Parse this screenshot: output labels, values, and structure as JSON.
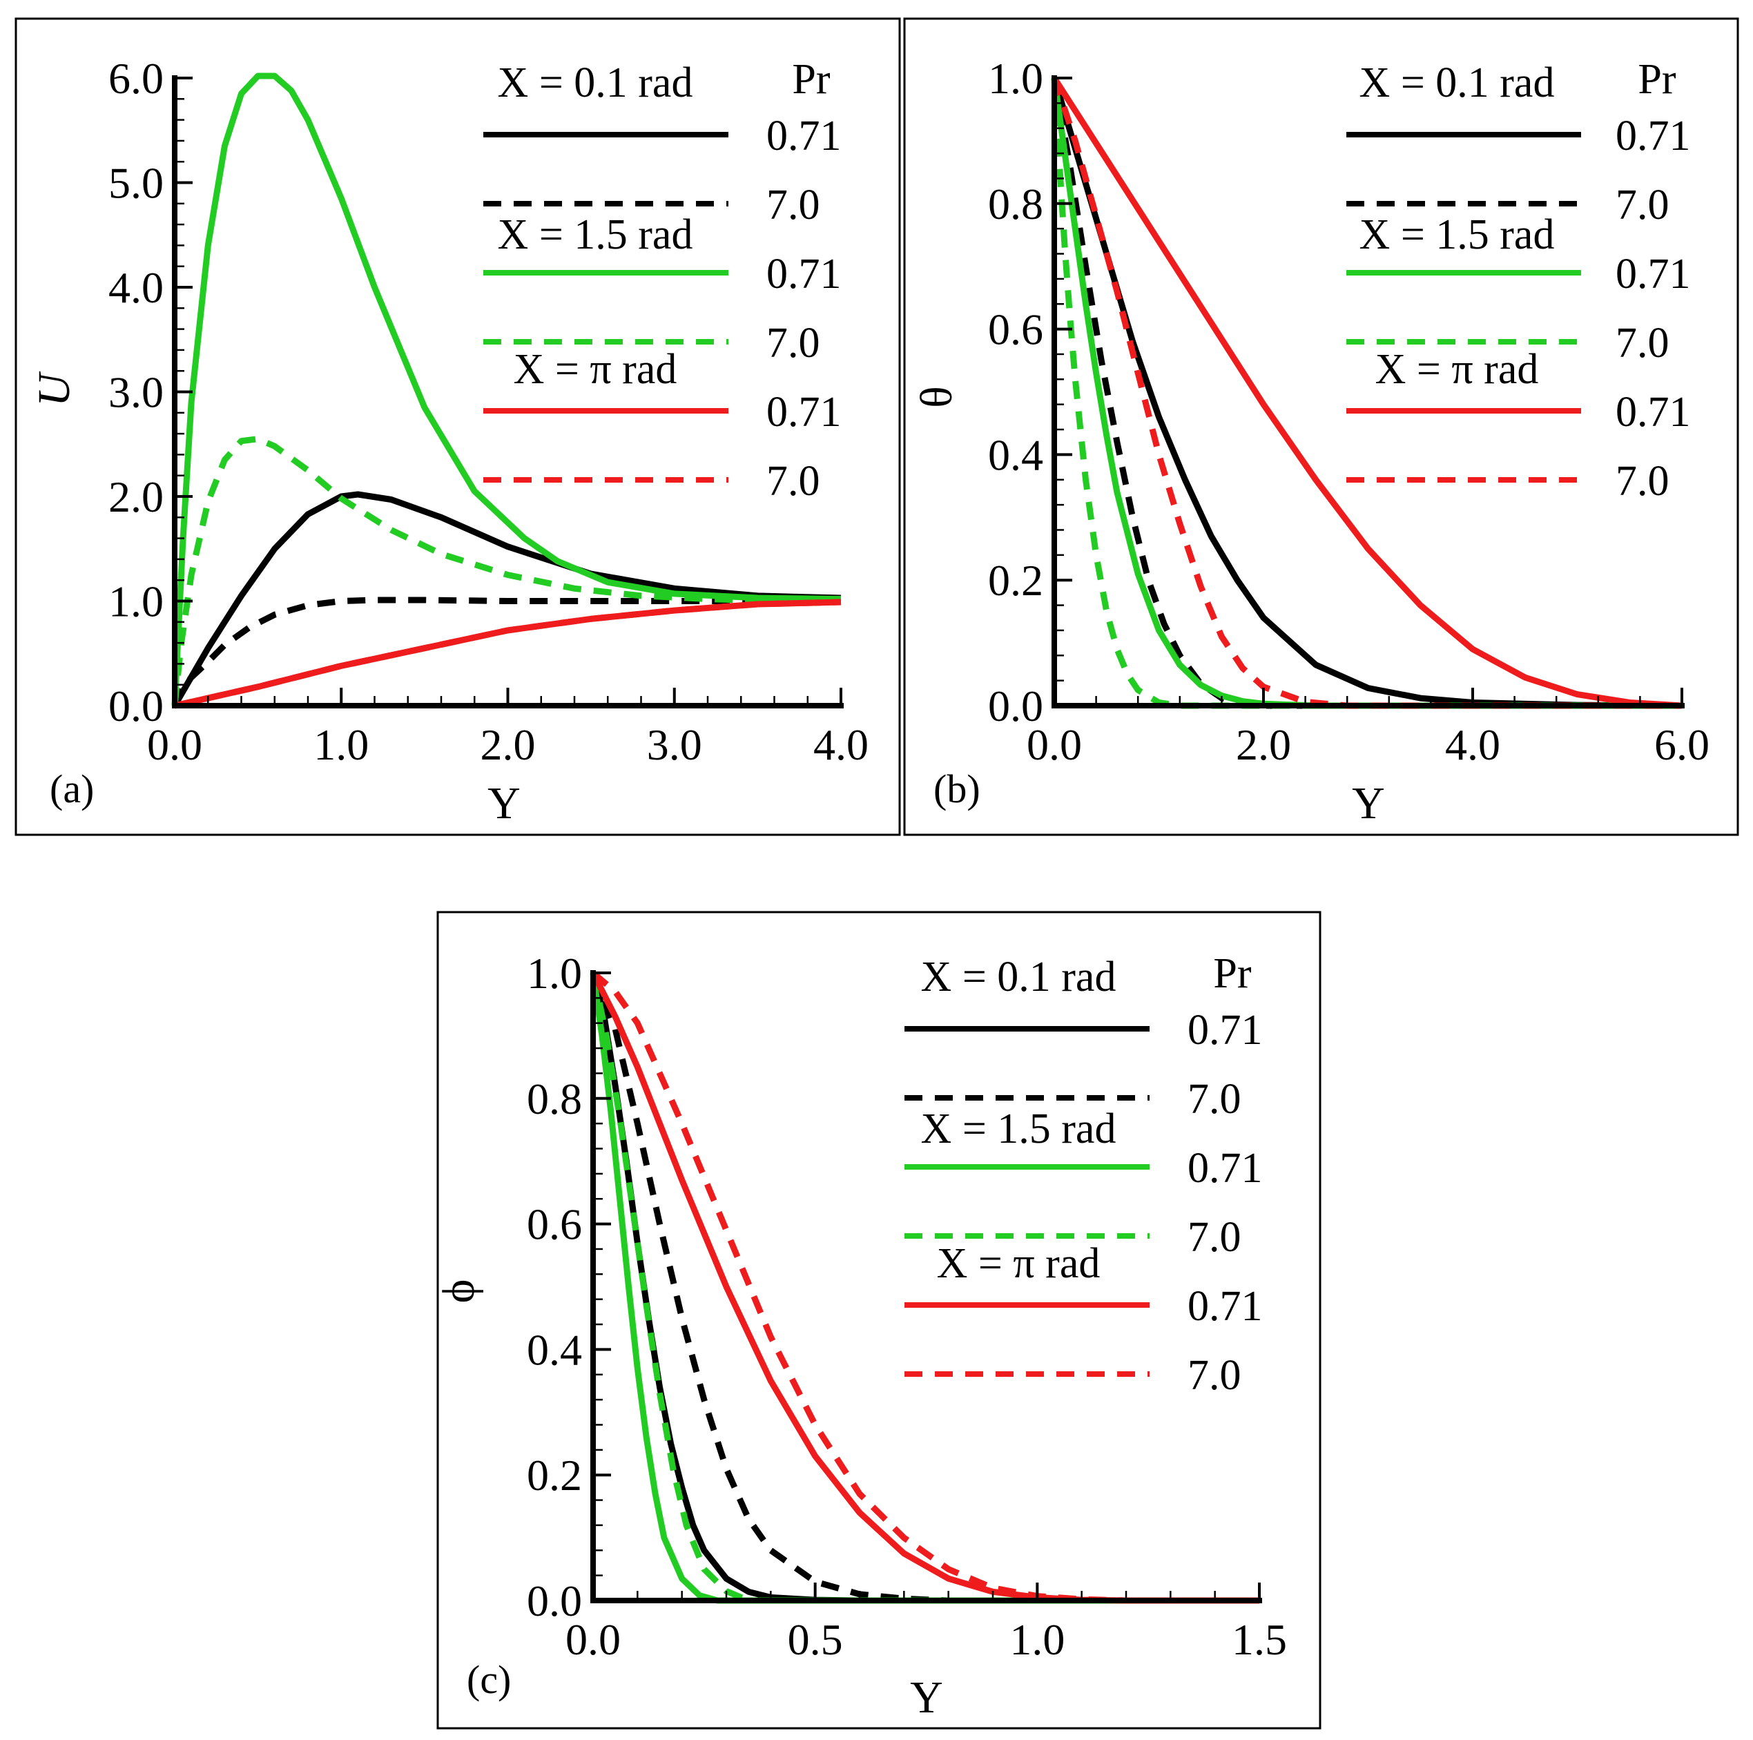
{
  "colors": {
    "black": "#000000",
    "green": "#22cc22",
    "red": "#ee1c1c"
  },
  "chart_data": [
    {
      "panel": "(a)",
      "type": "line",
      "xlabel": "Y",
      "ylabel": "U",
      "xlim": [
        0,
        4
      ],
      "ylim": [
        0,
        6
      ],
      "xticks": [
        "0.0",
        "1.0",
        "2.0",
        "3.0",
        "4.0"
      ],
      "yticks": [
        "0.0",
        "1.0",
        "2.0",
        "3.0",
        "4.0",
        "5.0",
        "6.0"
      ],
      "legend_header": "Pr",
      "legend_groups": [
        "X = 0.1 rad",
        "X = 1.5 rad",
        "X = π rad"
      ],
      "series": [
        {
          "name": "0.71",
          "group": "X = 0.1 rad",
          "color": "#000000",
          "dash": false,
          "x": [
            0,
            0.2,
            0.4,
            0.6,
            0.8,
            1.0,
            1.1,
            1.3,
            1.6,
            2.0,
            2.5,
            3.0,
            3.5,
            4.0
          ],
          "y": [
            0,
            0.55,
            1.05,
            1.5,
            1.83,
            2.0,
            2.02,
            1.97,
            1.8,
            1.52,
            1.26,
            1.12,
            1.05,
            1.03
          ]
        },
        {
          "name": "7.0",
          "group": "X = 0.1 rad",
          "color": "#000000",
          "dash": true,
          "x": [
            0,
            0.05,
            0.1,
            0.2,
            0.3,
            0.45,
            0.6,
            0.8,
            1.0,
            1.2,
            1.5,
            2.0,
            2.5,
            3.0,
            3.5,
            4.0
          ],
          "y": [
            0,
            0.18,
            0.27,
            0.42,
            0.58,
            0.75,
            0.87,
            0.96,
            1.0,
            1.01,
            1.01,
            1.0,
            1.0,
            1.0,
            1.0,
            1.0
          ]
        },
        {
          "name": "0.71",
          "group": "X = 1.5 rad",
          "color": "#22cc22",
          "dash": false,
          "x": [
            0,
            0.05,
            0.1,
            0.2,
            0.3,
            0.4,
            0.5,
            0.6,
            0.7,
            0.8,
            1.0,
            1.2,
            1.5,
            1.8,
            2.1,
            2.3,
            2.6,
            3.0,
            3.5,
            4.0
          ],
          "y": [
            0,
            1.6,
            2.9,
            4.4,
            5.35,
            5.85,
            6.02,
            6.02,
            5.88,
            5.6,
            4.85,
            4.0,
            2.85,
            2.05,
            1.6,
            1.38,
            1.18,
            1.07,
            1.03,
            1.02
          ]
        },
        {
          "name": "7.0",
          "group": "X = 1.5 rad",
          "color": "#22cc22",
          "dash": true,
          "x": [
            0,
            0.04,
            0.1,
            0.2,
            0.3,
            0.4,
            0.5,
            0.6,
            0.8,
            1.0,
            1.3,
            1.6,
            2.0,
            2.4,
            2.8,
            3.2,
            3.6,
            4.0
          ],
          "y": [
            0,
            0.6,
            1.25,
            1.95,
            2.35,
            2.53,
            2.55,
            2.48,
            2.25,
            1.98,
            1.68,
            1.45,
            1.25,
            1.12,
            1.05,
            1.02,
            1.0,
            1.0
          ]
        },
        {
          "name": "0.71",
          "group": "X = π rad",
          "color": "#ee1c1c",
          "dash": false,
          "x": [
            0,
            0.5,
            1.0,
            1.5,
            2.0,
            2.5,
            3.0,
            3.5,
            4.0
          ],
          "y": [
            0,
            0.18,
            0.38,
            0.55,
            0.72,
            0.83,
            0.91,
            0.97,
            0.99
          ]
        },
        {
          "name": "7.0",
          "group": "X = π rad",
          "color": "#ee1c1c",
          "dash": true,
          "x": [
            0,
            0.5,
            1.0,
            1.5,
            2.0,
            2.5,
            3.0,
            3.5,
            4.0
          ],
          "y": [
            0,
            0.18,
            0.38,
            0.55,
            0.72,
            0.83,
            0.91,
            0.97,
            0.99
          ]
        }
      ]
    },
    {
      "panel": "(b)",
      "type": "line",
      "xlabel": "Y",
      "ylabel": "θ",
      "xlim": [
        0,
        6
      ],
      "ylim": [
        0,
        1
      ],
      "xticks": [
        "0.0",
        "2.0",
        "4.0",
        "6.0"
      ],
      "yticks": [
        "0.0",
        "0.2",
        "0.4",
        "0.6",
        "0.8",
        "1.0"
      ],
      "legend_header": "Pr",
      "legend_groups": [
        "X = 0.1 rad",
        "X = 1.5 rad",
        "X = π rad"
      ],
      "series": [
        {
          "name": "0.71",
          "group": "X = 0.1 rad",
          "color": "#000000",
          "dash": false,
          "x": [
            0,
            0.25,
            0.5,
            0.75,
            1.0,
            1.25,
            1.5,
            1.75,
            2.0,
            2.5,
            3.0,
            3.5,
            4.0,
            5.0,
            6.0
          ],
          "y": [
            1.0,
            0.86,
            0.72,
            0.58,
            0.46,
            0.36,
            0.27,
            0.2,
            0.14,
            0.065,
            0.028,
            0.012,
            0.005,
            0.001,
            0.0
          ]
        },
        {
          "name": "7.0",
          "group": "X = 0.1 rad",
          "color": "#000000",
          "dash": true,
          "x": [
            0,
            0.15,
            0.3,
            0.45,
            0.6,
            0.75,
            0.9,
            1.05,
            1.2,
            1.4,
            1.6,
            1.8,
            2.0,
            3.0,
            6.0
          ],
          "y": [
            1.0,
            0.86,
            0.7,
            0.55,
            0.42,
            0.3,
            0.2,
            0.13,
            0.08,
            0.035,
            0.012,
            0.003,
            0.0,
            0.0,
            0.0
          ]
        },
        {
          "name": "0.71",
          "group": "X = 1.5 rad",
          "color": "#22cc22",
          "dash": false,
          "x": [
            0,
            0.1,
            0.2,
            0.3,
            0.4,
            0.5,
            0.6,
            0.8,
            1.0,
            1.2,
            1.4,
            1.6,
            1.8,
            2.0,
            2.5,
            3.0,
            6.0
          ],
          "y": [
            1.0,
            0.88,
            0.76,
            0.64,
            0.53,
            0.43,
            0.34,
            0.21,
            0.12,
            0.065,
            0.033,
            0.016,
            0.007,
            0.003,
            0.0,
            0.0,
            0.0
          ]
        },
        {
          "name": "7.0",
          "group": "X = 1.5 rad",
          "color": "#22cc22",
          "dash": true,
          "x": [
            0,
            0.05,
            0.1,
            0.15,
            0.2,
            0.3,
            0.4,
            0.5,
            0.6,
            0.7,
            0.8,
            1.0,
            1.2,
            1.5,
            6.0
          ],
          "y": [
            1.0,
            0.86,
            0.73,
            0.62,
            0.52,
            0.36,
            0.24,
            0.15,
            0.09,
            0.05,
            0.025,
            0.005,
            0.0,
            0.0,
            0.0
          ]
        },
        {
          "name": "0.71",
          "group": "X = π rad",
          "color": "#ee1c1c",
          "dash": false,
          "x": [
            0,
            0.5,
            1.0,
            1.5,
            2.0,
            2.5,
            3.0,
            3.5,
            4.0,
            4.5,
            5.0,
            5.5,
            6.0
          ],
          "y": [
            1.0,
            0.87,
            0.74,
            0.61,
            0.48,
            0.36,
            0.25,
            0.16,
            0.09,
            0.045,
            0.018,
            0.005,
            0.0
          ]
        },
        {
          "name": "7.0",
          "group": "X = π rad",
          "color": "#ee1c1c",
          "dash": true,
          "x": [
            0,
            0.2,
            0.4,
            0.6,
            0.8,
            1.0,
            1.2,
            1.4,
            1.6,
            1.8,
            2.0,
            2.4,
            2.8,
            3.2,
            6.0
          ],
          "y": [
            1.0,
            0.9,
            0.78,
            0.66,
            0.53,
            0.4,
            0.29,
            0.19,
            0.11,
            0.06,
            0.03,
            0.006,
            0.0,
            0.0,
            0.0
          ]
        }
      ]
    },
    {
      "panel": "(c)",
      "type": "line",
      "xlabel": "Y",
      "ylabel": "ϕ",
      "xlim": [
        0,
        1.5
      ],
      "ylim": [
        0,
        1
      ],
      "xticks": [
        "0.0",
        "0.5",
        "1.0",
        "1.5"
      ],
      "yticks": [
        "0.0",
        "0.2",
        "0.4",
        "0.6",
        "0.8",
        "1.0"
      ],
      "legend_header": "Pr",
      "legend_groups": [
        "X = 0.1 rad",
        "X = 1.5 rad",
        "X = π rad"
      ],
      "series": [
        {
          "name": "0.71",
          "group": "X = 0.1 rad",
          "color": "#000000",
          "dash": false,
          "x": [
            0,
            0.025,
            0.05,
            0.075,
            0.1,
            0.125,
            0.15,
            0.175,
            0.2,
            0.225,
            0.25,
            0.3,
            0.35,
            0.4,
            0.5,
            0.6,
            1.5
          ],
          "y": [
            1.0,
            0.93,
            0.82,
            0.7,
            0.57,
            0.45,
            0.34,
            0.25,
            0.18,
            0.12,
            0.08,
            0.035,
            0.014,
            0.005,
            0.001,
            0.0,
            0.0
          ]
        },
        {
          "name": "7.0",
          "group": "X = 0.1 rad",
          "color": "#000000",
          "dash": true,
          "x": [
            0,
            0.05,
            0.1,
            0.15,
            0.2,
            0.25,
            0.3,
            0.35,
            0.4,
            0.5,
            0.6,
            0.7,
            0.8,
            1.5
          ],
          "y": [
            1.0,
            0.91,
            0.76,
            0.6,
            0.45,
            0.32,
            0.21,
            0.13,
            0.08,
            0.03,
            0.01,
            0.003,
            0.0,
            0.0
          ]
        },
        {
          "name": "0.71",
          "group": "X = 1.5 rad",
          "color": "#22cc22",
          "dash": false,
          "x": [
            0,
            0.02,
            0.04,
            0.06,
            0.08,
            0.1,
            0.12,
            0.14,
            0.16,
            0.2,
            0.24,
            0.28,
            1.5
          ],
          "y": [
            1.0,
            0.9,
            0.78,
            0.64,
            0.5,
            0.37,
            0.26,
            0.17,
            0.1,
            0.035,
            0.008,
            0.0,
            0.0
          ]
        },
        {
          "name": "7.0",
          "group": "X = 1.5 rad",
          "color": "#22cc22",
          "dash": true,
          "x": [
            0,
            0.03,
            0.06,
            0.09,
            0.12,
            0.15,
            0.18,
            0.21,
            0.25,
            0.3,
            0.35,
            1.5
          ],
          "y": [
            1.0,
            0.9,
            0.77,
            0.62,
            0.47,
            0.33,
            0.21,
            0.12,
            0.05,
            0.015,
            0.0,
            0.0
          ]
        },
        {
          "name": "0.71",
          "group": "X = π rad",
          "color": "#ee1c1c",
          "dash": false,
          "x": [
            0,
            0.05,
            0.1,
            0.15,
            0.2,
            0.3,
            0.4,
            0.5,
            0.6,
            0.7,
            0.8,
            0.9,
            1.0,
            1.1,
            1.2,
            1.5
          ],
          "y": [
            1.0,
            0.93,
            0.85,
            0.76,
            0.67,
            0.5,
            0.35,
            0.23,
            0.14,
            0.075,
            0.035,
            0.014,
            0.005,
            0.001,
            0.0,
            0.0
          ]
        },
        {
          "name": "7.0",
          "group": "X = π rad",
          "color": "#ee1c1c",
          "dash": true,
          "x": [
            0,
            0.05,
            0.1,
            0.15,
            0.2,
            0.3,
            0.4,
            0.5,
            0.6,
            0.7,
            0.8,
            0.9,
            1.0,
            1.1,
            1.2,
            1.5
          ],
          "y": [
            1.0,
            0.97,
            0.92,
            0.84,
            0.76,
            0.59,
            0.42,
            0.28,
            0.17,
            0.1,
            0.05,
            0.02,
            0.007,
            0.002,
            0.0,
            0.0
          ]
        }
      ]
    }
  ]
}
